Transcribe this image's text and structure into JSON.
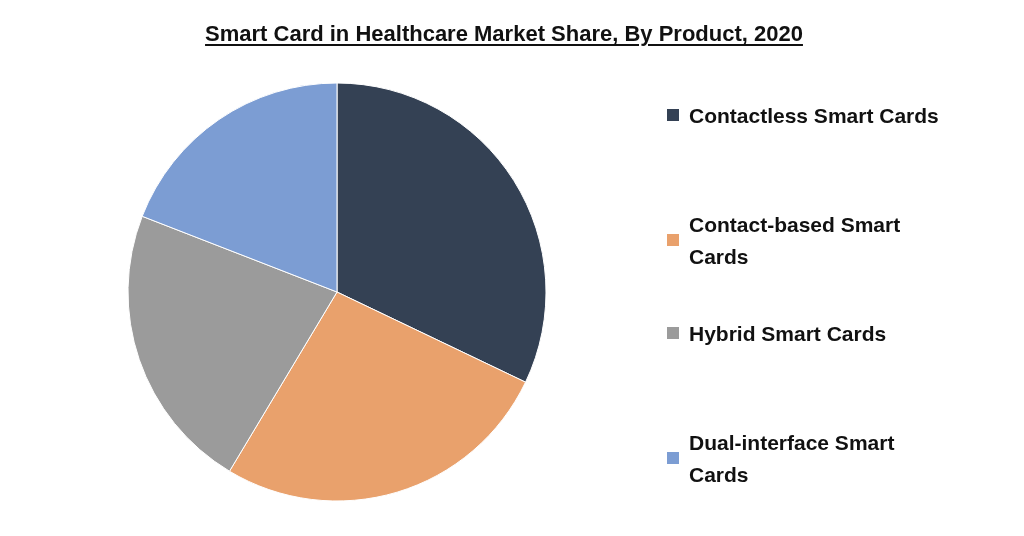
{
  "chart_data": {
    "type": "pie",
    "title": "Smart Card in Healthcare Market Share, By Product, 2020",
    "categories": [
      "Contactless Smart Cards",
      "Contact-based Smart Cards",
      "Hybrid Smart Cards",
      "Dual-interface Smart Cards"
    ],
    "values": [
      32.1,
      26.5,
      22.3,
      19.1
    ],
    "colors": [
      "#344154",
      "#e9a16c",
      "#9b9b9b",
      "#7c9dd3"
    ],
    "legend": "right"
  }
}
